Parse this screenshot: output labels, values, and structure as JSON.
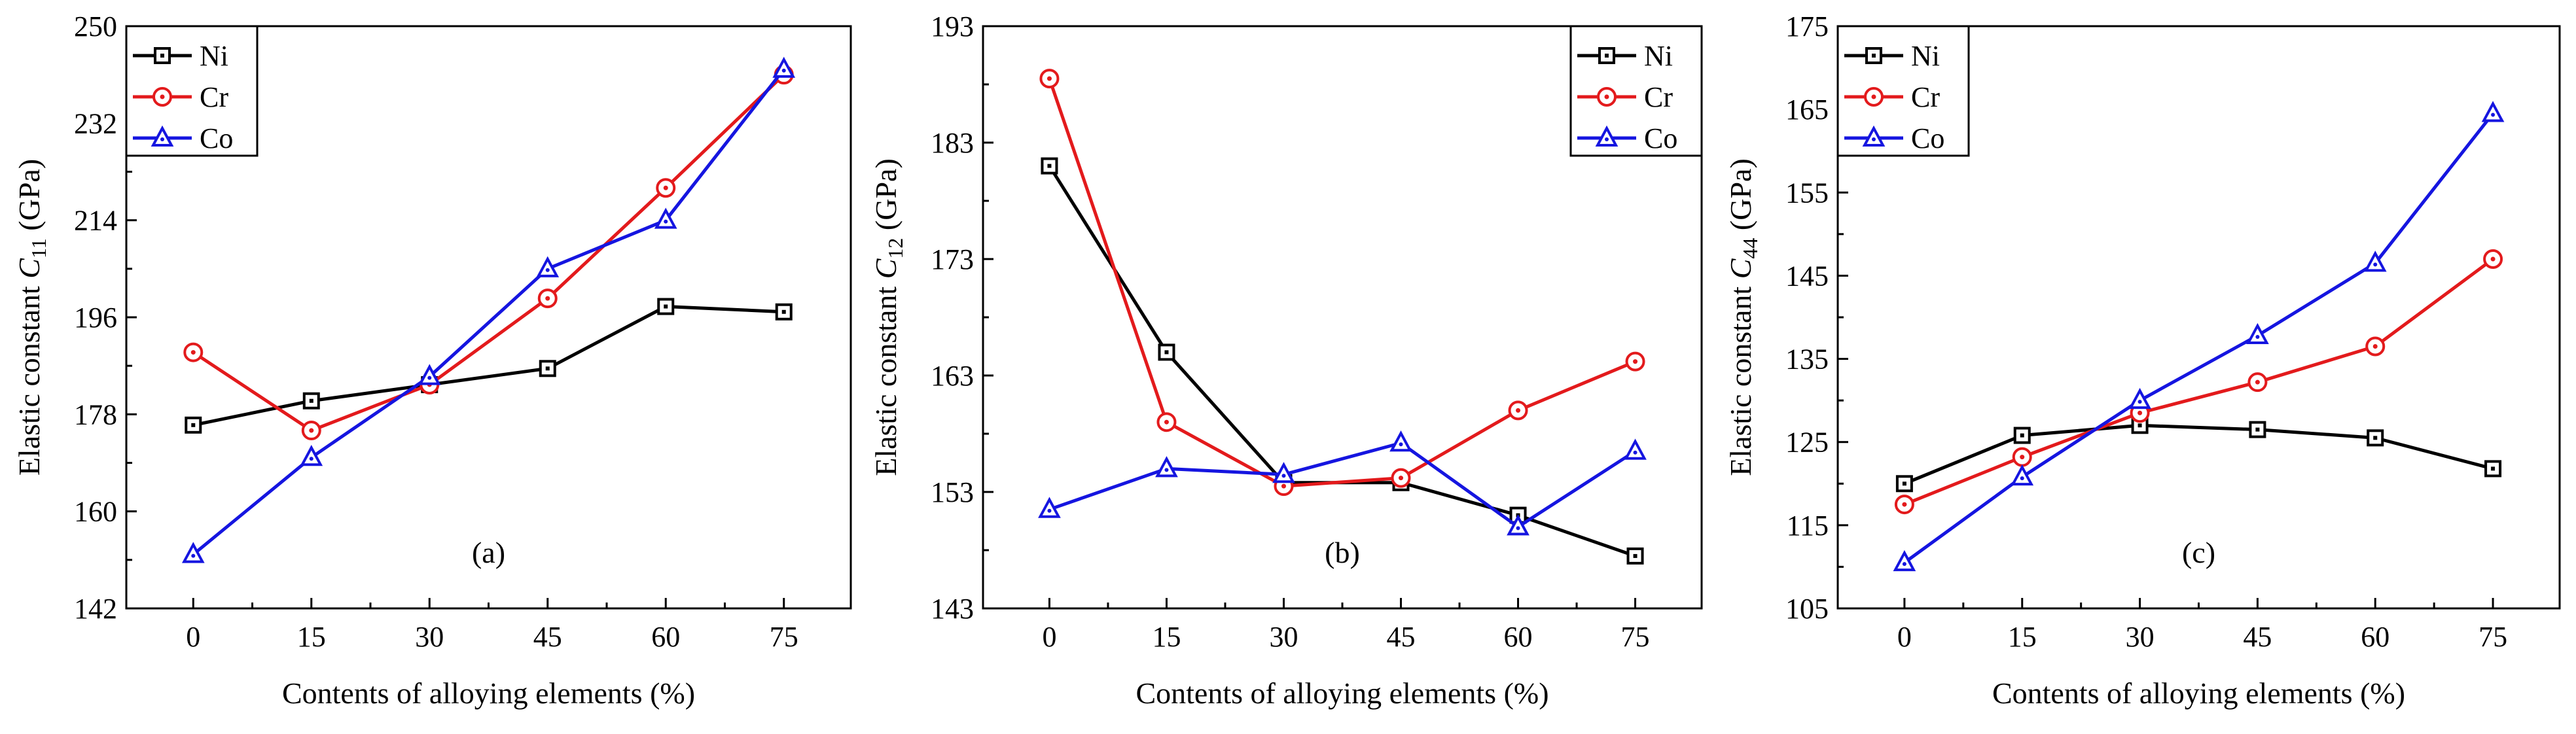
{
  "chart_data": [
    {
      "type": "line",
      "panel_label": "(a)",
      "x": [
        0,
        15,
        30,
        45,
        60,
        75
      ],
      "xlabel": "Contents of alloying elements (%)",
      "ylabel_prefix": "Elastic constant ",
      "ylabel_var": "C",
      "ylabel_sub": "11",
      "ylabel_unit": " (GPa)",
      "xlim": [
        -8.5,
        83.5
      ],
      "ylim": [
        142,
        250
      ],
      "yticks": [
        142,
        160,
        178,
        196,
        214,
        232,
        250
      ],
      "xticks": [
        0,
        15,
        30,
        45,
        60,
        75
      ],
      "legend_position": "top-left",
      "series": [
        {
          "name": "Ni",
          "marker": "square",
          "color": "#000000",
          "values": [
            176,
            180.5,
            183.5,
            186.5,
            198,
            197
          ]
        },
        {
          "name": "Cr",
          "marker": "circle",
          "color": "#e31a1c",
          "values": [
            189.5,
            175,
            183.5,
            199.5,
            220,
            241
          ]
        },
        {
          "name": "Co",
          "marker": "triangle",
          "color": "#1515e0",
          "values": [
            152,
            170,
            185,
            205,
            214,
            242
          ]
        }
      ]
    },
    {
      "type": "line",
      "panel_label": "(b)",
      "x": [
        0,
        15,
        30,
        45,
        60,
        75
      ],
      "xlabel": "Contents of alloying elements (%)",
      "ylabel_prefix": "Elastic constant ",
      "ylabel_var": "C",
      "ylabel_sub": "12",
      "ylabel_unit": " (GPa)",
      "xlim": [
        -8.5,
        83.5
      ],
      "ylim": [
        143,
        193
      ],
      "yticks": [
        143,
        153,
        163,
        173,
        183,
        193
      ],
      "xticks": [
        0,
        15,
        30,
        45,
        60,
        75
      ],
      "legend_position": "top-right",
      "series": [
        {
          "name": "Ni",
          "marker": "square",
          "color": "#000000",
          "values": [
            181,
            165,
            153.8,
            153.8,
            151,
            147.5
          ]
        },
        {
          "name": "Cr",
          "marker": "circle",
          "color": "#e31a1c",
          "values": [
            188.5,
            159,
            153.5,
            154.2,
            160,
            164.2
          ]
        },
        {
          "name": "Co",
          "marker": "triangle",
          "color": "#1515e0",
          "values": [
            151.5,
            155,
            154.5,
            157.2,
            150,
            156.5
          ]
        }
      ]
    },
    {
      "type": "line",
      "panel_label": "(c)",
      "x": [
        0,
        15,
        30,
        45,
        60,
        75
      ],
      "xlabel": "Contents of alloying elements (%)",
      "ylabel_prefix": "Elastic constant ",
      "ylabel_var": "C",
      "ylabel_sub": "44",
      "ylabel_unit": " (GPa)",
      "xlim": [
        -8.5,
        83.5
      ],
      "ylim": [
        105,
        175
      ],
      "yticks": [
        105,
        115,
        125,
        135,
        145,
        155,
        165,
        175
      ],
      "xticks": [
        0,
        15,
        30,
        45,
        60,
        75
      ],
      "legend_position": "top-left",
      "series": [
        {
          "name": "Ni",
          "marker": "square",
          "color": "#000000",
          "values": [
            120,
            125.8,
            127,
            126.5,
            125.5,
            121.8
          ]
        },
        {
          "name": "Cr",
          "marker": "circle",
          "color": "#e31a1c",
          "values": [
            117.5,
            123.2,
            128.5,
            132.2,
            136.5,
            147
          ]
        },
        {
          "name": "Co",
          "marker": "triangle",
          "color": "#1515e0",
          "values": [
            110.5,
            120.8,
            130,
            137.8,
            146.5,
            164.5
          ]
        }
      ]
    }
  ]
}
